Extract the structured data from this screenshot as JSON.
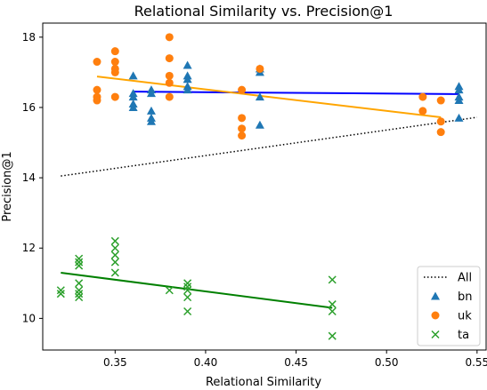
{
  "chart_data": {
    "type": "scatter",
    "title": "Relational Similarity vs. Precision@1",
    "xlabel": "Relational Similarity",
    "ylabel": "Precision@1",
    "xlim": [
      0.31,
      0.555
    ],
    "ylim": [
      9.1,
      18.4
    ],
    "xticks": [
      0.35,
      0.4,
      0.45,
      0.5,
      0.55
    ],
    "xtick_labels": [
      "0.35",
      "0.40",
      "0.45",
      "0.50",
      "0.55"
    ],
    "yticks": [
      10,
      12,
      14,
      16,
      18
    ],
    "ytick_labels": [
      "10",
      "12",
      "14",
      "16",
      "18"
    ],
    "grid": false,
    "legend_position": "bottom-right",
    "legend": [
      {
        "label": "All",
        "kind": "dotted-line",
        "color": "#000000"
      },
      {
        "label": "bn",
        "kind": "triangle",
        "color": "#1f77b4"
      },
      {
        "label": "uk",
        "kind": "circle",
        "color": "#ff7f0e"
      },
      {
        "label": "ta",
        "kind": "cross",
        "color": "#2ca02c"
      }
    ],
    "series": [
      {
        "name": "bn",
        "marker": "triangle",
        "color": "#1f77b4",
        "points": [
          [
            0.36,
            16.9
          ],
          [
            0.36,
            16.4
          ],
          [
            0.36,
            16.3
          ],
          [
            0.36,
            16.1
          ],
          [
            0.36,
            16.0
          ],
          [
            0.37,
            16.5
          ],
          [
            0.37,
            16.4
          ],
          [
            0.37,
            15.9
          ],
          [
            0.37,
            15.7
          ],
          [
            0.37,
            15.6
          ],
          [
            0.39,
            17.2
          ],
          [
            0.39,
            16.9
          ],
          [
            0.39,
            16.8
          ],
          [
            0.39,
            16.6
          ],
          [
            0.39,
            16.5
          ],
          [
            0.43,
            17.1
          ],
          [
            0.43,
            17.0
          ],
          [
            0.43,
            16.3
          ],
          [
            0.43,
            15.5
          ],
          [
            0.54,
            16.6
          ],
          [
            0.54,
            16.5
          ],
          [
            0.54,
            16.3
          ],
          [
            0.54,
            16.2
          ],
          [
            0.54,
            15.7
          ]
        ]
      },
      {
        "name": "uk",
        "marker": "circle",
        "color": "#ff7f0e",
        "points": [
          [
            0.34,
            17.3
          ],
          [
            0.34,
            16.5
          ],
          [
            0.34,
            16.3
          ],
          [
            0.34,
            16.2
          ],
          [
            0.35,
            17.6
          ],
          [
            0.35,
            17.3
          ],
          [
            0.35,
            17.1
          ],
          [
            0.35,
            17.0
          ],
          [
            0.35,
            16.3
          ],
          [
            0.38,
            18.0
          ],
          [
            0.38,
            17.4
          ],
          [
            0.38,
            16.9
          ],
          [
            0.38,
            16.7
          ],
          [
            0.38,
            16.3
          ],
          [
            0.42,
            16.5
          ],
          [
            0.42,
            15.7
          ],
          [
            0.42,
            15.4
          ],
          [
            0.42,
            15.2
          ],
          [
            0.43,
            17.1
          ],
          [
            0.52,
            16.3
          ],
          [
            0.52,
            15.9
          ],
          [
            0.53,
            16.2
          ],
          [
            0.53,
            15.6
          ],
          [
            0.53,
            15.3
          ]
        ]
      },
      {
        "name": "ta",
        "marker": "cross",
        "color": "#2ca02c",
        "points": [
          [
            0.32,
            10.8
          ],
          [
            0.32,
            10.7
          ],
          [
            0.33,
            11.7
          ],
          [
            0.33,
            11.6
          ],
          [
            0.33,
            11.5
          ],
          [
            0.33,
            11.0
          ],
          [
            0.33,
            10.8
          ],
          [
            0.33,
            10.7
          ],
          [
            0.33,
            10.6
          ],
          [
            0.35,
            12.2
          ],
          [
            0.35,
            12.0
          ],
          [
            0.35,
            11.8
          ],
          [
            0.35,
            11.6
          ],
          [
            0.35,
            11.3
          ],
          [
            0.38,
            10.8
          ],
          [
            0.39,
            11.0
          ],
          [
            0.39,
            10.9
          ],
          [
            0.39,
            10.8
          ],
          [
            0.39,
            10.6
          ],
          [
            0.39,
            10.2
          ],
          [
            0.47,
            11.1
          ],
          [
            0.47,
            10.4
          ],
          [
            0.47,
            10.2
          ],
          [
            0.47,
            9.5
          ]
        ]
      }
    ],
    "trend_lines": [
      {
        "name": "All",
        "style": "dotted",
        "color": "#000000",
        "x": [
          0.32,
          0.55
        ],
        "y": [
          14.05,
          15.72
        ]
      },
      {
        "name": "bn",
        "style": "solid",
        "color": "#0000ff",
        "x": [
          0.36,
          0.54
        ],
        "y": [
          16.45,
          16.38
        ]
      },
      {
        "name": "uk",
        "style": "solid",
        "color": "#ffa500",
        "x": [
          0.34,
          0.53
        ],
        "y": [
          16.88,
          15.72
        ]
      },
      {
        "name": "ta",
        "style": "solid",
        "color": "#008000",
        "x": [
          0.32,
          0.47
        ],
        "y": [
          11.3,
          10.3
        ]
      }
    ]
  }
}
